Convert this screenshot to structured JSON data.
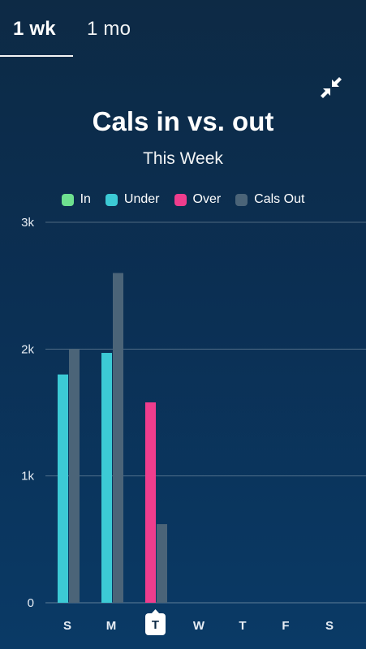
{
  "tabs": [
    {
      "label": "1 wk",
      "active": true
    },
    {
      "label": "1 mo",
      "active": false
    }
  ],
  "icons": {
    "collapse": "collapse-arrows-icon"
  },
  "colors": {
    "in": "#6ee08f",
    "under": "#3ccad5",
    "over": "#ef3d8d",
    "cals_out": "#4b6478",
    "today_badge_bg": "#ffffff",
    "today_badge_text": "#0d2a45"
  },
  "chart_data": {
    "type": "bar",
    "title": "Cals in vs. out",
    "subtitle": "This Week",
    "legend": [
      {
        "name": "In",
        "color": "#6ee08f"
      },
      {
        "name": "Under",
        "color": "#3ccad5"
      },
      {
        "name": "Over",
        "color": "#ef3d8d"
      },
      {
        "name": "Cals Out",
        "color": "#4b6478"
      }
    ],
    "categories": [
      "S",
      "M",
      "T",
      "W",
      "T",
      "F",
      "S"
    ],
    "today_index": 2,
    "series": [
      {
        "name": "Cals In",
        "values": [
          1800,
          1970,
          1580,
          null,
          null,
          null,
          null
        ],
        "status": [
          "under",
          "under",
          "over",
          null,
          null,
          null,
          null
        ]
      },
      {
        "name": "Cals Out",
        "values": [
          2000,
          2600,
          620,
          null,
          null,
          null,
          null
        ]
      }
    ],
    "ylim": [
      0,
      3000
    ],
    "yticks": [
      0,
      1000,
      2000,
      3000
    ],
    "ytick_labels": [
      "0",
      "1k",
      "2k",
      "3k"
    ],
    "grid": true,
    "legend_position": "top-center"
  }
}
